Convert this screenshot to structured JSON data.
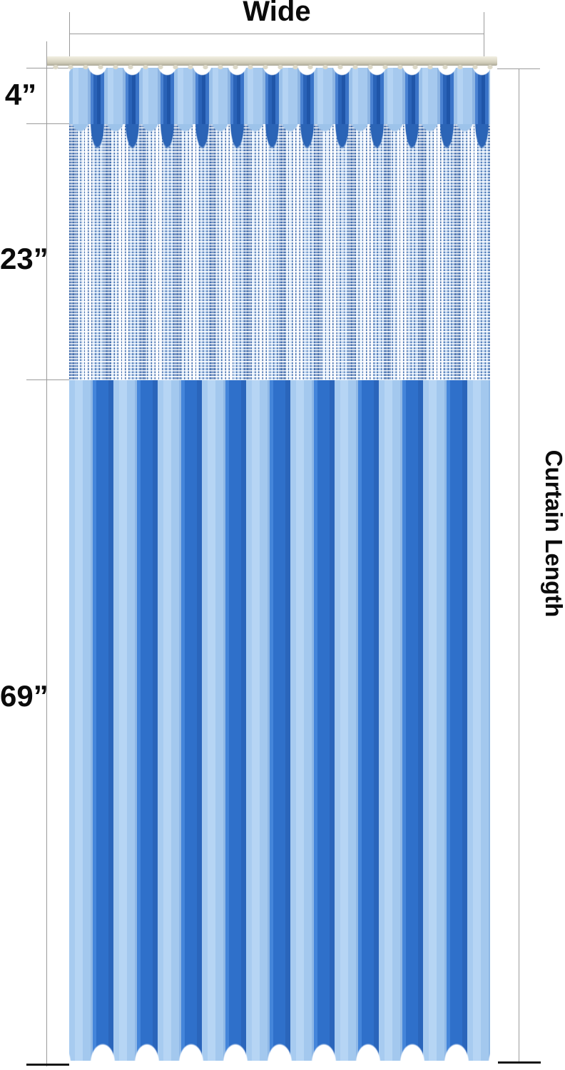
{
  "figure": {
    "kind": "product dimension diagram",
    "subject": "blue tab-top curtain with sheer mesh upper panel hanging on a ceiling track",
    "background": "#ffffff"
  },
  "annotations": {
    "wide": "Wide",
    "curtain_length": "Curtain Length",
    "sections": [
      {
        "name": "tab-top header",
        "label": "4”",
        "inches": 4
      },
      {
        "name": "mesh panel",
        "label": "23”",
        "inches": 23
      },
      {
        "name": "solid fabric panel",
        "label": "69”",
        "inches": 69
      }
    ]
  },
  "colors": {
    "dimension_line": "#9b9b9b",
    "end_tick": "#161616",
    "label_text": "#0b0b0b",
    "track_beige": "#dcd8c6",
    "curtain_light_blue": "#a6c9ee",
    "curtain_medium_blue": "#2f70ca",
    "curtain_dark_fold": "#1f55a8",
    "mesh_base": "#f3f7fc",
    "mesh_line_blue": "#2f5fa5"
  }
}
